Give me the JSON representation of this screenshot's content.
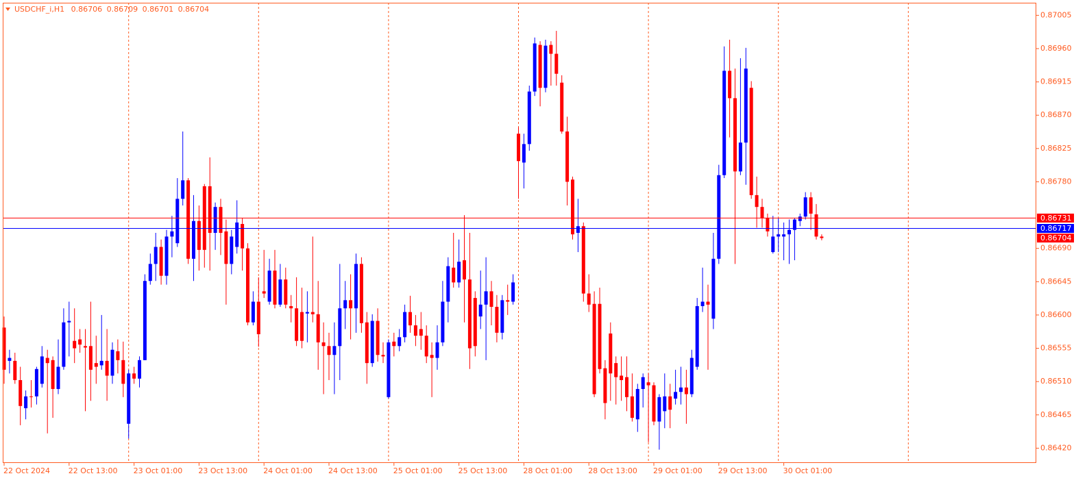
{
  "chart_data": {
    "type": "candlestick",
    "symbol": "USDCHF_i,H1",
    "up_color": "#0000ff",
    "down_color": "#ff0000",
    "axis_color": "#ff5a1f",
    "ylim": [
      0.864,
      0.87022
    ],
    "yticks": [
      0.87005,
      {
        "value": 0.8696,
        "label": "0.86960"
      },
      0.86915,
      {
        "value": 0.8687,
        "label": "0.86870"
      },
      0.86825,
      {
        "value": 0.8678,
        "label": "0.86780"
      },
      {
        "value": 0.8669,
        "label": "0.86690"
      },
      0.86645,
      {
        "value": 0.866,
        "label": "0.86600"
      },
      0.86555,
      {
        "value": 0.8651,
        "label": "0.86510"
      },
      0.86465,
      {
        "value": 0.8642,
        "label": "0.86420"
      }
    ],
    "hlines": [
      {
        "value": 0.86731,
        "color": "#ff0000"
      },
      {
        "value": 0.86717,
        "color": "#0000ff"
      }
    ],
    "categories": [
      "22 Oct 2024",
      null,
      null,
      null,
      null,
      null,
      null,
      null,
      null,
      null,
      null,
      null,
      "22 Oct 13:00",
      null,
      null,
      null,
      null,
      null,
      null,
      null,
      null,
      null,
      null,
      null,
      "23 Oct 01:00",
      null,
      null,
      null,
      null,
      null,
      null,
      null,
      null,
      null,
      null,
      null,
      "23 Oct 13:00",
      null,
      null,
      null,
      null,
      null,
      null,
      null,
      null,
      null,
      null,
      null,
      "24 Oct 01:00",
      null,
      null,
      null,
      null,
      null,
      null,
      null,
      null,
      null,
      null,
      null,
      "24 Oct 13:00",
      null,
      null,
      null,
      null,
      null,
      null,
      null,
      null,
      null,
      null,
      null,
      "25 Oct 01:00",
      null,
      null,
      null,
      null,
      null,
      null,
      null,
      null,
      null,
      null,
      null,
      "25 Oct 13:00",
      null,
      null,
      null,
      null,
      null,
      null,
      null,
      null,
      null,
      null,
      null,
      "28 Oct 01:00",
      null,
      null,
      null,
      null,
      null,
      null,
      null,
      null,
      null,
      null,
      null,
      "28 Oct 13:00",
      null,
      null,
      null,
      null,
      null,
      null,
      null,
      null,
      null,
      null,
      null,
      "29 Oct 01:00",
      null,
      null,
      null,
      null,
      null,
      null,
      null,
      null,
      null,
      null,
      null,
      "29 Oct 13:00",
      null,
      null,
      null,
      null,
      null,
      null,
      null,
      null,
      null,
      null,
      null,
      "30 Oct 01:00",
      null,
      null,
      null,
      null,
      null,
      null,
      null
    ],
    "open": [
      0.86583,
      0.86538,
      0.86538,
      0.86512,
      0.86474,
      0.8649,
      0.8649,
      0.86507,
      0.86542,
      0.86539,
      0.865,
      0.8653,
      0.8659,
      0.86565,
      0.86567,
      0.86558,
      0.86558,
      0.86535,
      0.86532,
      0.86538,
      0.86518,
      0.86551,
      0.86539,
      0.86453,
      0.86521,
      0.86514,
      0.86539,
      0.86646,
      0.86669,
      0.86692,
      0.86653,
      0.86706,
      0.86697,
      0.86757,
      0.86782,
      0.86676,
      0.86727,
      0.86774,
      0.86774,
      0.86711,
      0.86746,
      0.86713,
      0.86669,
      0.86692,
      0.86723,
      0.8669,
      0.8659,
      0.86618,
      0.86632,
      0.86618,
      0.8666,
      0.86614,
      0.86648,
      0.86612,
      0.86609,
      0.86604,
      0.86602,
      0.86604,
      0.86601,
      0.86563,
      0.86558,
      0.86546,
      0.86558,
      0.86609,
      0.8662,
      0.86609,
      0.86669,
      0.8659,
      0.86535,
      0.86592,
      0.86546,
      0.86489,
      0.86564,
      0.86558,
      0.8657,
      0.86604,
      0.86586,
      0.86581,
      0.86572,
      0.86546,
      0.86542,
      0.86563,
      0.86618,
      0.86664,
      0.86644,
      0.86674,
      0.86648,
      0.86623,
      0.86598,
      0.86614,
      0.86632,
      0.86611,
      0.86576,
      0.8662,
      0.86618,
      0.86845,
      0.86806,
      0.86831,
      0.86902,
      0.86965,
      0.86907,
      0.86965,
      0.86953,
      0.86914,
      0.86848,
      0.86783,
      0.86711,
      0.8672,
      0.86629,
      0.86615,
      0.86615,
      0.86528,
      0.86575,
      0.86535,
      0.86518,
      0.86516,
      0.8649,
      0.86459,
      0.865,
      0.86509,
      0.86505,
      0.86456,
      0.8647,
      0.8649,
      0.86487,
      0.86496,
      0.86502,
      0.86493,
      0.8653,
      0.86612,
      0.86618,
      0.86595,
      0.86676,
      0.86789,
      0.8693,
      0.86893,
      0.86794,
      0.86833,
      0.86907,
      0.86762,
      0.86746,
      0.86731,
      0.86685,
      0.86706,
      0.86706,
      0.86709,
      0.86715,
      0.86727,
      0.86733,
      0.86759,
      0.86736,
      0.86706
    ],
    "high": [
      0.86598,
      0.86553,
      0.86549,
      0.8653,
      0.86498,
      0.86512,
      0.8653,
      0.86558,
      0.86553,
      0.86544,
      0.86567,
      0.86609,
      0.86618,
      0.86609,
      0.86581,
      0.86581,
      0.86618,
      0.86572,
      0.866,
      0.86581,
      0.86563,
      0.86567,
      0.86564,
      0.86526,
      0.8653,
      0.86544,
      0.86655,
      0.86683,
      0.86711,
      0.86702,
      0.86715,
      0.86734,
      0.86785,
      0.86848,
      0.86785,
      0.86762,
      0.86748,
      0.86777,
      0.86813,
      0.86752,
      0.86757,
      0.86729,
      0.86715,
      0.86755,
      0.86731,
      0.86697,
      0.86632,
      0.86651,
      0.86688,
      0.86676,
      0.86688,
      0.86669,
      0.86664,
      0.86627,
      0.86651,
      0.86637,
      0.86632,
      0.86706,
      0.86646,
      0.8659,
      0.86576,
      0.8659,
      0.86669,
      0.86646,
      0.86655,
      0.86683,
      0.86678,
      0.86604,
      0.86601,
      0.86609,
      0.86563,
      0.86567,
      0.86576,
      0.86581,
      0.86614,
      0.86626,
      0.866,
      0.86604,
      0.86586,
      0.86563,
      0.86586,
      0.86646,
      0.86678,
      0.86711,
      0.86702,
      0.86735,
      0.86711,
      0.86632,
      0.8666,
      0.86678,
      0.86646,
      0.86627,
      0.86627,
      0.86641,
      0.86655,
      0.86854,
      0.86845,
      0.8691,
      0.86975,
      0.8697,
      0.86972,
      0.8697,
      0.86984,
      0.86924,
      0.86868,
      0.86787,
      0.86757,
      0.86725,
      0.86655,
      0.86632,
      0.86637,
      0.86539,
      0.8659,
      0.86544,
      0.86544,
      0.86544,
      0.86521,
      0.86507,
      0.86521,
      0.86521,
      0.86509,
      0.86493,
      0.86521,
      0.86507,
      0.86526,
      0.8653,
      0.86526,
      0.86553,
      0.86623,
      0.86664,
      0.86641,
      0.86711,
      0.86803,
      0.86963,
      0.86972,
      0.86933,
      0.86947,
      0.86961,
      0.86916,
      0.86787,
      0.86757,
      0.86737,
      0.86734,
      0.86731,
      0.86725,
      0.86729,
      0.86731,
      0.86737,
      0.86766,
      0.86766,
      0.8675,
      0.86709
    ],
    "low": [
      0.86507,
      0.86521,
      0.86507,
      0.86451,
      0.86459,
      0.86475,
      0.86479,
      0.86502,
      0.8644,
      0.86461,
      0.86493,
      0.86526,
      0.86544,
      0.86535,
      0.86549,
      0.8647,
      0.86484,
      0.86507,
      0.86526,
      0.86484,
      0.86507,
      0.86521,
      0.86489,
      0.86433,
      0.86507,
      0.86502,
      0.86539,
      0.86641,
      0.86646,
      0.86641,
      0.86641,
      0.86678,
      0.86692,
      0.86748,
      0.86669,
      0.86646,
      0.8666,
      0.86664,
      0.8666,
      0.86688,
      0.86681,
      0.86614,
      0.86655,
      0.86683,
      0.8666,
      0.86586,
      0.86586,
      0.86557,
      0.86623,
      0.86614,
      0.86609,
      0.86611,
      0.86609,
      0.8659,
      0.86558,
      0.86555,
      0.86563,
      0.8659,
      0.86526,
      0.86493,
      0.86512,
      0.86493,
      0.86512,
      0.86581,
      0.86567,
      0.86576,
      0.86576,
      0.86507,
      0.8653,
      0.86537,
      0.86535,
      0.86487,
      0.86544,
      0.86551,
      0.86563,
      0.86576,
      0.86558,
      0.86553,
      0.86535,
      0.86489,
      0.86526,
      0.86558,
      0.8659,
      0.86637,
      0.86637,
      0.8659,
      0.86527,
      0.86544,
      0.86581,
      0.86539,
      0.86586,
      0.86563,
      0.86567,
      0.866,
      0.86614,
      0.86757,
      0.86771,
      0.86822,
      0.86896,
      0.86882,
      0.86901,
      0.8691,
      0.8691,
      0.86845,
      0.86748,
      0.86702,
      0.86685,
      0.86618,
      0.86604,
      0.86489,
      0.86521,
      0.86459,
      0.86484,
      0.86479,
      0.86484,
      0.8647,
      0.86456,
      0.86442,
      0.86475,
      0.86428,
      0.86451,
      0.86418,
      0.86447,
      0.86447,
      0.86479,
      0.86479,
      0.86453,
      0.86489,
      0.86526,
      0.86604,
      0.86526,
      0.86581,
      0.86669,
      0.86785,
      0.8684,
      0.86669,
      0.86789,
      0.86776,
      0.86757,
      0.86718,
      0.86718,
      0.86706,
      0.86683,
      0.86685,
      0.86674,
      0.86669,
      0.86674,
      0.8672,
      0.86729,
      0.86715,
      0.86702,
      0.86701
    ],
    "close": [
      0.86526,
      0.86542,
      0.86512,
      0.86477,
      0.8649,
      0.86489,
      0.86527,
      0.86544,
      0.86535,
      0.865,
      0.8653,
      0.8659,
      0.86592,
      0.86555,
      0.8656,
      0.86556,
      0.86526,
      0.8653,
      0.86538,
      0.86518,
      0.86553,
      0.86539,
      0.86507,
      0.86521,
      0.86514,
      0.86539,
      0.86646,
      0.86669,
      0.86692,
      0.86653,
      0.86706,
      0.86713,
      0.86757,
      0.86782,
      0.86676,
      0.86727,
      0.86688,
      0.86688,
      0.86711,
      0.86746,
      0.86711,
      0.86669,
      0.86706,
      0.86725,
      0.8669,
      0.8659,
      0.86618,
      0.86574,
      0.86629,
      0.8666,
      0.86614,
      0.86648,
      0.86614,
      0.86609,
      0.86565,
      0.86565,
      0.86604,
      0.86601,
      0.86563,
      0.86558,
      0.86546,
      0.86558,
      0.86609,
      0.8662,
      0.86609,
      0.86669,
      0.86589,
      0.86535,
      0.86592,
      0.86546,
      0.86544,
      0.86563,
      0.86558,
      0.8657,
      0.86604,
      0.86586,
      0.86572,
      0.86572,
      0.86544,
      0.86542,
      0.86563,
      0.86618,
      0.86666,
      0.86644,
      0.86672,
      0.86648,
      0.86555,
      0.86558,
      0.86614,
      0.86632,
      0.86611,
      0.86576,
      0.8662,
      0.86618,
      0.86644,
      0.86808,
      0.86831,
      0.86902,
      0.86967,
      0.86907,
      0.86964,
      0.86953,
      0.86926,
      0.86848,
      0.8678,
      0.86709,
      0.8672,
      0.86629,
      0.86614,
      0.86493,
      0.86527,
      0.86481,
      0.86521,
      0.86516,
      0.86512,
      0.86489,
      0.86461,
      0.865,
      0.86516,
      0.86505,
      0.86456,
      0.86489,
      0.8649,
      0.86472,
      0.86496,
      0.86502,
      0.86493,
      0.86542,
      0.86612,
      0.86618,
      0.86614,
      0.86676,
      0.86789,
      0.8693,
      0.86893,
      0.86794,
      0.86833,
      0.86933,
      0.86762,
      0.86746,
      0.86731,
      0.86713,
      0.86706,
      0.86709,
      0.86709,
      0.86715,
      0.86729,
      0.86733,
      0.86759,
      0.86737,
      0.86706,
      0.86704
    ]
  }
}
